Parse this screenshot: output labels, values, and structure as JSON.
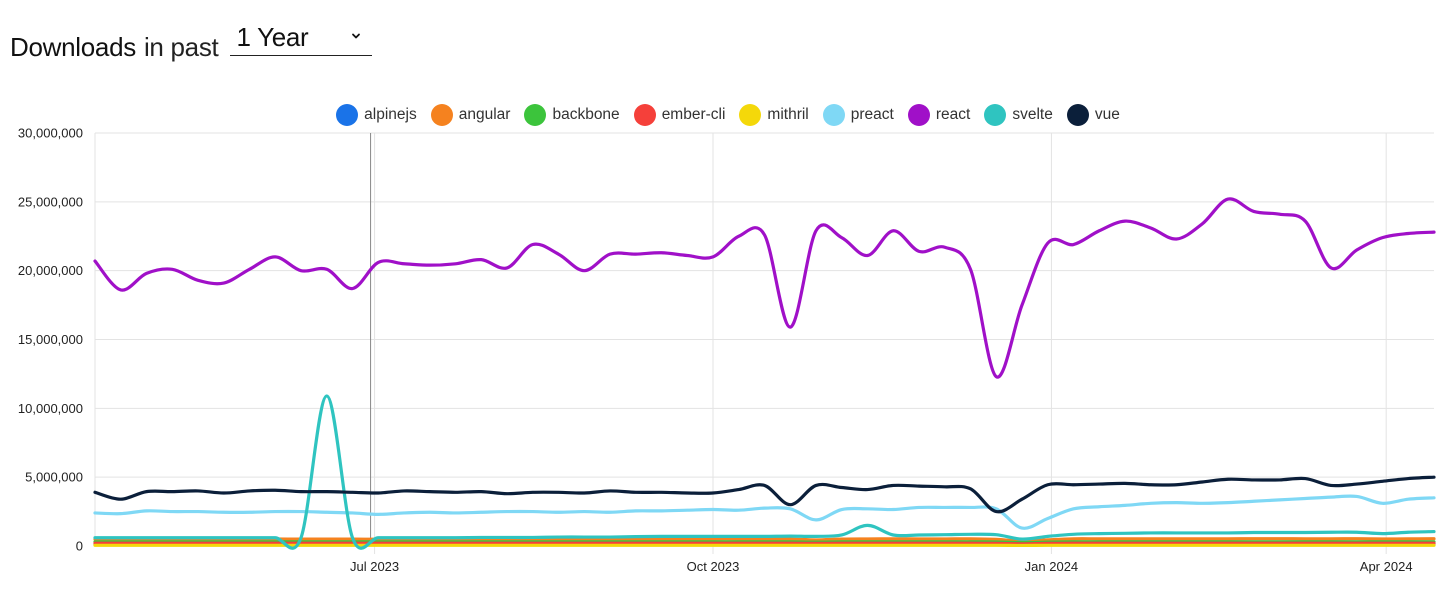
{
  "header": {
    "title_bold": "Downloads",
    "title_light": "in past",
    "period_value": "1 Year",
    "chevron_icon": "chevron-down-icon"
  },
  "chart_data": {
    "type": "line",
    "title": "Downloads in past 1 Year",
    "xlabel": "",
    "ylabel": "",
    "x_ticks": [
      "Jul 2023",
      "Oct 2023",
      "Jan 2024",
      "Apr 2024"
    ],
    "y_ticks": [
      "0",
      "5,000,000",
      "10,000,000",
      "15,000,000",
      "20,000,000",
      "25,000,000",
      "30,000,000"
    ],
    "ylim": [
      0,
      30000000
    ],
    "legend_position": "top-center",
    "x": [
      "2023-04-16",
      "2023-04-23",
      "2023-04-30",
      "2023-05-07",
      "2023-05-14",
      "2023-05-21",
      "2023-05-28",
      "2023-06-04",
      "2023-06-11",
      "2023-06-18",
      "2023-06-25",
      "2023-07-02",
      "2023-07-09",
      "2023-07-16",
      "2023-07-23",
      "2023-07-30",
      "2023-08-06",
      "2023-08-13",
      "2023-08-20",
      "2023-08-27",
      "2023-09-03",
      "2023-09-10",
      "2023-09-17",
      "2023-09-24",
      "2023-10-01",
      "2023-10-08",
      "2023-10-15",
      "2023-10-22",
      "2023-10-29",
      "2023-11-05",
      "2023-11-12",
      "2023-11-19",
      "2023-11-26",
      "2023-12-03",
      "2023-12-10",
      "2023-12-17",
      "2023-12-24",
      "2023-12-31",
      "2024-01-07",
      "2024-01-14",
      "2024-01-21",
      "2024-01-28",
      "2024-02-04",
      "2024-02-11",
      "2024-02-18",
      "2024-02-25",
      "2024-03-03",
      "2024-03-10",
      "2024-03-17",
      "2024-03-24",
      "2024-03-31",
      "2024-04-07",
      "2024-04-14"
    ],
    "series": [
      {
        "name": "alpinejs",
        "color": "#1a73e8",
        "values": [
          100000,
          100000,
          100000,
          100000,
          100000,
          100000,
          110000,
          110000,
          110000,
          110000,
          110000,
          110000,
          110000,
          110000,
          110000,
          120000,
          120000,
          120000,
          120000,
          120000,
          120000,
          120000,
          120000,
          120000,
          120000,
          130000,
          130000,
          130000,
          130000,
          130000,
          130000,
          130000,
          130000,
          130000,
          130000,
          120000,
          100000,
          120000,
          140000,
          140000,
          140000,
          140000,
          140000,
          140000,
          140000,
          140000,
          150000,
          150000,
          150000,
          150000,
          150000,
          150000,
          150000
        ]
      },
      {
        "name": "angular",
        "color": "#f5821f",
        "values": [
          500000,
          500000,
          510000,
          510000,
          500000,
          500000,
          510000,
          510000,
          500000,
          500000,
          500000,
          490000,
          500000,
          500000,
          510000,
          510000,
          500000,
          510000,
          500000,
          500000,
          510000,
          510000,
          500000,
          510000,
          520000,
          520000,
          510000,
          500000,
          440000,
          500000,
          510000,
          520000,
          510000,
          510000,
          520000,
          480000,
          360000,
          450000,
          520000,
          520000,
          520000,
          520000,
          520000,
          520000,
          520000,
          530000,
          530000,
          520000,
          520000,
          530000,
          510000,
          520000,
          530000
        ]
      },
      {
        "name": "backbone",
        "color": "#3cc43c",
        "values": [
          300000,
          300000,
          300000,
          300000,
          300000,
          300000,
          300000,
          300000,
          300000,
          300000,
          300000,
          300000,
          300000,
          300000,
          300000,
          300000,
          300000,
          300000,
          300000,
          300000,
          300000,
          300000,
          300000,
          300000,
          300000,
          300000,
          300000,
          300000,
          280000,
          300000,
          300000,
          300000,
          300000,
          300000,
          300000,
          290000,
          250000,
          280000,
          300000,
          300000,
          300000,
          300000,
          300000,
          300000,
          300000,
          300000,
          300000,
          300000,
          300000,
          300000,
          300000,
          300000,
          300000
        ]
      },
      {
        "name": "ember-cli",
        "color": "#f5403a",
        "values": [
          200000,
          200000,
          200000,
          200000,
          200000,
          200000,
          200000,
          200000,
          200000,
          200000,
          200000,
          200000,
          200000,
          200000,
          200000,
          200000,
          200000,
          200000,
          200000,
          200000,
          200000,
          200000,
          200000,
          200000,
          200000,
          200000,
          200000,
          200000,
          190000,
          200000,
          200000,
          200000,
          200000,
          200000,
          200000,
          190000,
          160000,
          190000,
          200000,
          200000,
          200000,
          200000,
          200000,
          200000,
          200000,
          200000,
          200000,
          200000,
          200000,
          200000,
          200000,
          200000,
          200000
        ]
      },
      {
        "name": "mithril",
        "color": "#f4d80a",
        "values": [
          50000,
          50000,
          50000,
          50000,
          50000,
          50000,
          50000,
          50000,
          50000,
          50000,
          50000,
          50000,
          50000,
          50000,
          50000,
          50000,
          50000,
          50000,
          50000,
          50000,
          50000,
          50000,
          50000,
          50000,
          50000,
          50000,
          50000,
          50000,
          50000,
          50000,
          50000,
          50000,
          50000,
          50000,
          50000,
          50000,
          40000,
          50000,
          50000,
          50000,
          50000,
          50000,
          50000,
          50000,
          50000,
          50000,
          50000,
          50000,
          50000,
          50000,
          50000,
          50000,
          50000
        ]
      },
      {
        "name": "preact",
        "color": "#7fd8f5",
        "values": [
          2400000,
          2350000,
          2550000,
          2500000,
          2500000,
          2450000,
          2450000,
          2500000,
          2500000,
          2450000,
          2400000,
          2300000,
          2400000,
          2450000,
          2400000,
          2450000,
          2500000,
          2500000,
          2450000,
          2500000,
          2450000,
          2550000,
          2550000,
          2600000,
          2650000,
          2600000,
          2750000,
          2700000,
          1900000,
          2650000,
          2700000,
          2650000,
          2800000,
          2800000,
          2800000,
          2700000,
          1300000,
          2000000,
          2700000,
          2850000,
          2950000,
          3100000,
          3150000,
          3100000,
          3150000,
          3250000,
          3350000,
          3450000,
          3550000,
          3600000,
          3100000,
          3400000,
          3500000
        ]
      },
      {
        "name": "react",
        "color": "#a010c8",
        "values": [
          20700000,
          18600000,
          19800000,
          20100000,
          19300000,
          19100000,
          20100000,
          21000000,
          20000000,
          20100000,
          18700000,
          20600000,
          20500000,
          20400000,
          20500000,
          20800000,
          20200000,
          21900000,
          21200000,
          20000000,
          21200000,
          21200000,
          21300000,
          21100000,
          21000000,
          22500000,
          22600000,
          15900000,
          22900000,
          22400000,
          21100000,
          22900000,
          21400000,
          21700000,
          20100000,
          12300000,
          17500000,
          22000000,
          21900000,
          22900000,
          23600000,
          23100000,
          22300000,
          23400000,
          25200000,
          24300000,
          24100000,
          23600000,
          20200000,
          21500000,
          22400000,
          22700000,
          22800000
        ]
      },
      {
        "name": "svelte",
        "color": "#2fc4c0",
        "values": [
          600000,
          600000,
          600000,
          600000,
          600000,
          600000,
          600000,
          600000,
          600000,
          10900000,
          600000,
          600000,
          600000,
          600000,
          600000,
          620000,
          620000,
          620000,
          650000,
          650000,
          650000,
          680000,
          700000,
          700000,
          700000,
          700000,
          700000,
          720000,
          700000,
          800000,
          1500000,
          800000,
          800000,
          820000,
          850000,
          820000,
          500000,
          700000,
          850000,
          900000,
          920000,
          950000,
          950000,
          950000,
          950000,
          980000,
          980000,
          980000,
          1000000,
          1000000,
          900000,
          1000000,
          1050000
        ]
      },
      {
        "name": "vue",
        "color": "#0b1f3a",
        "values": [
          3900000,
          3400000,
          3950000,
          3950000,
          4000000,
          3850000,
          4000000,
          4050000,
          3950000,
          3950000,
          3900000,
          3850000,
          4000000,
          3950000,
          3900000,
          3950000,
          3800000,
          3900000,
          3900000,
          3850000,
          4000000,
          3900000,
          3900000,
          3850000,
          3850000,
          4100000,
          4400000,
          3000000,
          4400000,
          4250000,
          4100000,
          4400000,
          4350000,
          4300000,
          4150000,
          2500000,
          3400000,
          4450000,
          4450000,
          4500000,
          4550000,
          4450000,
          4450000,
          4650000,
          4850000,
          4800000,
          4800000,
          4900000,
          4400000,
          4500000,
          4700000,
          4900000,
          5000000
        ]
      }
    ]
  }
}
